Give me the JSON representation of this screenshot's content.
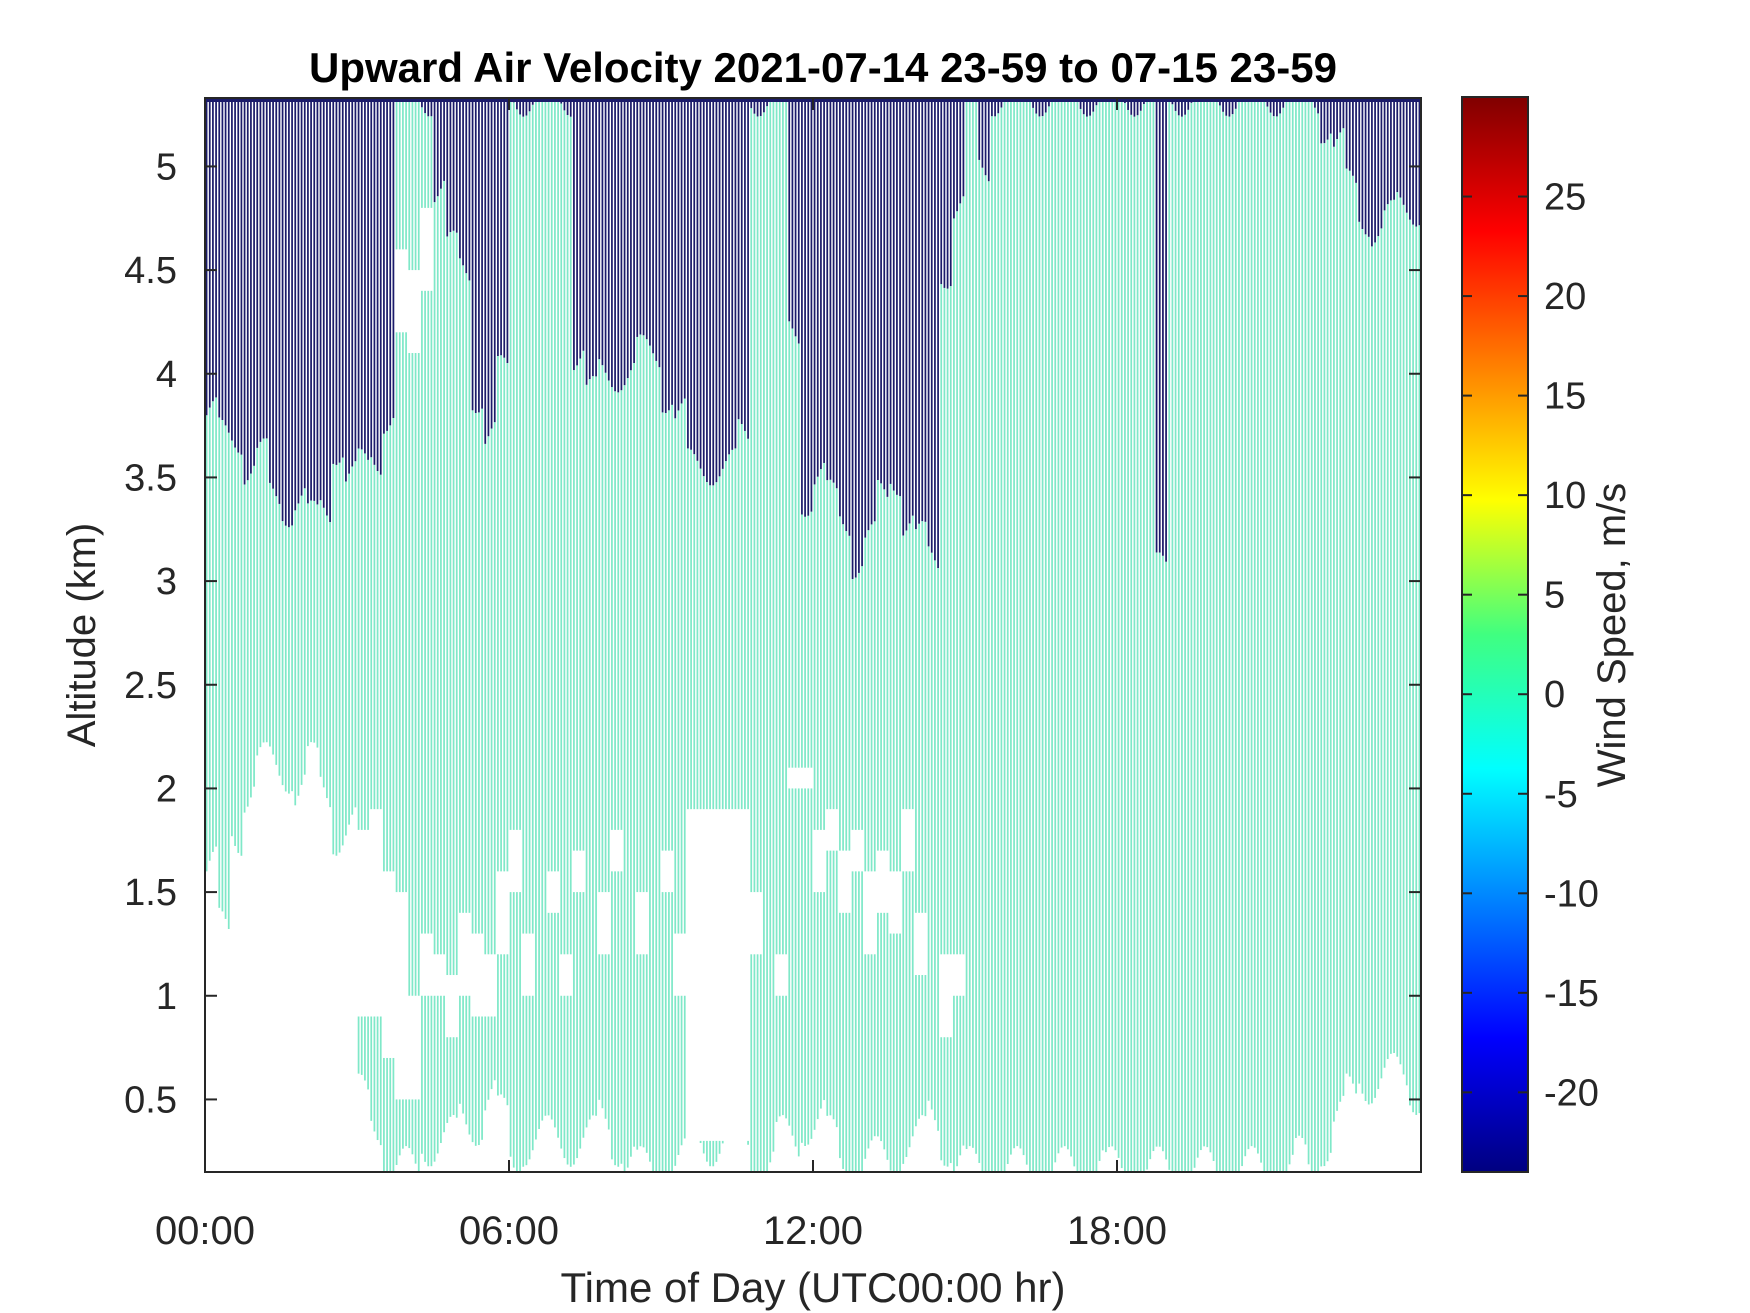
{
  "chart_data": {
    "type": "heatmap",
    "title": "Upward Air Velocity 2021-07-14 23-59 to 07-15 23-59",
    "xlabel": "Time of Day (UTC00:00 hr)",
    "ylabel": "Altitude (km)",
    "colorbar_label": "Wind Speed, m/s",
    "x_unit": "hours",
    "xlim": [
      0,
      24
    ],
    "ylim": [
      0.15,
      5.33
    ],
    "x_ticks": [
      0,
      6,
      12,
      18
    ],
    "x_tick_labels": [
      "00:00",
      "06:00",
      "12:00",
      "18:00"
    ],
    "y_ticks": [
      0.5,
      1,
      1.5,
      2,
      2.5,
      3,
      3.5,
      4,
      4.5,
      5
    ],
    "y_tick_labels": [
      "0.5",
      "1",
      "1.5",
      "2",
      "2.5",
      "3",
      "3.5",
      "4",
      "4.5",
      "5"
    ],
    "colorbar_range": [
      -24,
      30
    ],
    "colorbar_ticks": [
      25,
      20,
      15,
      10,
      5,
      0,
      -5,
      -10,
      -15,
      -20
    ],
    "colorbar_tick_labels": [
      "25",
      "20",
      "15",
      "10",
      "5",
      "0",
      "-5",
      "-10",
      "-15",
      "-20"
    ],
    "colormap": "jet",
    "grid": false,
    "colors": {
      "near_zero": "#7fe8c8",
      "strong_negative": "#1b1b6a"
    },
    "profile_interval_hours": 0.25,
    "profile_values_ms": {
      "below_threshold": -24,
      "above_threshold": 0
    },
    "profiles": [
      {
        "t": 0.0,
        "bottom": 1.6,
        "top": 3.8,
        "white": []
      },
      {
        "t": 0.25,
        "bottom": 1.3,
        "top": 3.7,
        "white": []
      },
      {
        "t": 0.5,
        "bottom": 1.8,
        "top": 3.7,
        "white": []
      },
      {
        "t": 0.75,
        "bottom": 2.0,
        "top": 3.55,
        "white": []
      },
      {
        "t": 1.0,
        "bottom": 2.1,
        "top": 3.6,
        "white": [
          [
            1.5,
            1.9
          ]
        ]
      },
      {
        "t": 1.25,
        "bottom": 2.1,
        "top": 3.4,
        "white": []
      },
      {
        "t": 1.5,
        "bottom": 2.1,
        "top": 3.35,
        "white": []
      },
      {
        "t": 1.75,
        "bottom": 2.0,
        "top": 3.4,
        "white": []
      },
      {
        "t": 2.0,
        "bottom": 2.1,
        "top": 3.3,
        "white": []
      },
      {
        "t": 2.25,
        "bottom": 2.0,
        "top": 3.35,
        "white": []
      },
      {
        "t": 2.5,
        "bottom": 1.8,
        "top": 3.65,
        "white": []
      },
      {
        "t": 2.75,
        "bottom": 1.8,
        "top": 3.5,
        "white": []
      },
      {
        "t": 3.0,
        "bottom": 0.5,
        "top": 3.55,
        "white": [
          [
            0.9,
            1.8
          ]
        ]
      },
      {
        "t": 3.25,
        "bottom": 0.4,
        "top": 3.6,
        "white": [
          [
            0.9,
            1.9
          ]
        ]
      },
      {
        "t": 3.5,
        "bottom": 0.15,
        "top": 3.8,
        "white": [
          [
            0.7,
            1.6
          ]
        ]
      },
      {
        "t": 3.75,
        "bottom": 0.15,
        "top": 5.33,
        "white": [
          [
            0.5,
            1.5
          ],
          [
            4.2,
            4.6
          ]
        ]
      },
      {
        "t": 4.0,
        "bottom": 0.15,
        "top": 5.33,
        "white": [
          [
            0.5,
            1.0
          ],
          [
            4.1,
            4.5
          ]
        ]
      },
      {
        "t": 4.25,
        "bottom": 0.3,
        "top": 5.33,
        "white": [
          [
            1.0,
            1.3
          ],
          [
            4.4,
            4.8
          ]
        ]
      },
      {
        "t": 4.5,
        "bottom": 0.3,
        "top": 4.9,
        "white": [
          [
            1.0,
            1.2
          ]
        ]
      },
      {
        "t": 4.75,
        "bottom": 0.3,
        "top": 4.6,
        "white": [
          [
            0.8,
            1.1
          ]
        ]
      },
      {
        "t": 5.0,
        "bottom": 0.4,
        "top": 4.5,
        "white": [
          [
            1.0,
            1.4
          ]
        ]
      },
      {
        "t": 5.25,
        "bottom": 0.4,
        "top": 3.9,
        "white": [
          [
            0.9,
            1.3
          ]
        ]
      },
      {
        "t": 5.5,
        "bottom": 0.5,
        "top": 3.7,
        "white": [
          [
            0.9,
            1.2
          ]
        ]
      },
      {
        "t": 5.75,
        "bottom": 0.4,
        "top": 4.0,
        "white": [
          [
            1.2,
            1.6
          ]
        ]
      },
      {
        "t": 6.0,
        "bottom": 0.2,
        "top": 5.33,
        "white": [
          [
            1.5,
            1.8
          ]
        ]
      },
      {
        "t": 6.25,
        "bottom": 0.3,
        "top": 5.33,
        "white": [
          [
            1.0,
            1.3
          ]
        ]
      },
      {
        "t": 6.5,
        "bottom": 0.3,
        "top": 5.33,
        "white": []
      },
      {
        "t": 6.75,
        "bottom": 0.3,
        "top": 5.33,
        "white": [
          [
            1.4,
            1.6
          ]
        ]
      },
      {
        "t": 7.0,
        "bottom": 0.3,
        "top": 5.33,
        "white": [
          [
            1.0,
            1.2
          ]
        ]
      },
      {
        "t": 7.25,
        "bottom": 0.3,
        "top": 4.1,
        "white": [
          [
            1.5,
            1.7
          ]
        ]
      },
      {
        "t": 7.5,
        "bottom": 0.3,
        "top": 3.9,
        "white": []
      },
      {
        "t": 7.75,
        "bottom": 0.4,
        "top": 4.0,
        "white": [
          [
            1.2,
            1.5
          ]
        ]
      },
      {
        "t": 8.0,
        "bottom": 0.3,
        "top": 4.0,
        "white": [
          [
            1.6,
            1.8
          ]
        ]
      },
      {
        "t": 8.25,
        "bottom": 0.2,
        "top": 4.0,
        "white": []
      },
      {
        "t": 8.5,
        "bottom": 0.15,
        "top": 4.1,
        "white": [
          [
            1.2,
            1.5
          ]
        ]
      },
      {
        "t": 8.75,
        "bottom": 0.15,
        "top": 4.1,
        "white": []
      },
      {
        "t": 9.0,
        "bottom": 0.15,
        "top": 3.9,
        "white": [
          [
            1.5,
            1.7
          ]
        ]
      },
      {
        "t": 9.25,
        "bottom": 0.2,
        "top": 3.8,
        "white": [
          [
            1.0,
            1.3
          ]
        ]
      },
      {
        "t": 9.5,
        "bottom": 0.3,
        "top": 3.55,
        "white": [
          [
            0.3,
            1.9
          ]
        ]
      },
      {
        "t": 9.75,
        "bottom": 0.3,
        "top": 3.55,
        "white": [
          [
            0.3,
            1.9
          ]
        ]
      },
      {
        "t": 10.0,
        "bottom": 0.3,
        "top": 3.55,
        "white": [
          [
            0.3,
            1.9
          ]
        ]
      },
      {
        "t": 10.25,
        "bottom": 0.3,
        "top": 3.55,
        "white": [
          [
            0.3,
            1.9
          ]
        ]
      },
      {
        "t": 10.5,
        "bottom": 0.3,
        "top": 3.7,
        "white": [
          [
            0.3,
            1.9
          ]
        ]
      },
      {
        "t": 10.75,
        "bottom": 0.2,
        "top": 5.33,
        "white": [
          [
            1.2,
            1.5
          ]
        ]
      },
      {
        "t": 11.0,
        "bottom": 0.2,
        "top": 5.33,
        "white": []
      },
      {
        "t": 11.25,
        "bottom": 0.3,
        "top": 5.33,
        "white": [
          [
            1.0,
            1.2
          ]
        ]
      },
      {
        "t": 11.5,
        "bottom": 0.3,
        "top": 4.2,
        "white": [
          [
            2.0,
            2.1
          ]
        ]
      },
      {
        "t": 11.75,
        "bottom": 0.4,
        "top": 3.4,
        "white": [
          [
            2.0,
            2.1
          ]
        ]
      },
      {
        "t": 12.0,
        "bottom": 0.4,
        "top": 3.5,
        "white": [
          [
            1.5,
            1.8
          ]
        ]
      },
      {
        "t": 12.25,
        "bottom": 0.3,
        "top": 3.4,
        "white": [
          [
            1.7,
            1.9
          ]
        ]
      },
      {
        "t": 12.5,
        "bottom": 0.2,
        "top": 3.3,
        "white": [
          [
            1.4,
            1.7
          ]
        ]
      },
      {
        "t": 12.75,
        "bottom": 0.15,
        "top": 3.1,
        "white": [
          [
            1.6,
            1.8
          ]
        ]
      },
      {
        "t": 13.0,
        "bottom": 0.2,
        "top": 3.2,
        "white": [
          [
            1.2,
            1.6
          ]
        ]
      },
      {
        "t": 13.25,
        "bottom": 0.2,
        "top": 3.4,
        "white": [
          [
            1.4,
            1.7
          ]
        ]
      },
      {
        "t": 13.5,
        "bottom": 0.2,
        "top": 3.5,
        "white": [
          [
            1.3,
            1.6
          ]
        ]
      },
      {
        "t": 13.75,
        "bottom": 0.3,
        "top": 3.3,
        "white": [
          [
            1.6,
            1.9
          ]
        ]
      },
      {
        "t": 14.0,
        "bottom": 0.3,
        "top": 3.2,
        "white": [
          [
            1.1,
            1.4
          ]
        ]
      },
      {
        "t": 14.25,
        "bottom": 0.4,
        "top": 3.1,
        "white": []
      },
      {
        "t": 14.5,
        "bottom": 0.3,
        "top": 4.5,
        "white": [
          [
            0.8,
            1.2
          ]
        ]
      },
      {
        "t": 14.75,
        "bottom": 0.2,
        "top": 4.8,
        "white": [
          [
            1.0,
            1.2
          ]
        ]
      },
      {
        "t": 15.0,
        "bottom": 0.15,
        "top": 5.33,
        "white": []
      },
      {
        "t": 15.25,
        "bottom": 0.15,
        "top": 5.0,
        "white": []
      },
      {
        "t": 15.5,
        "bottom": 0.15,
        "top": 5.33,
        "white": []
      },
      {
        "t": 15.75,
        "bottom": 0.15,
        "top": 5.33,
        "white": []
      },
      {
        "t": 16.0,
        "bottom": 0.15,
        "top": 5.33,
        "white": []
      },
      {
        "t": 16.25,
        "bottom": 0.15,
        "top": 5.33,
        "white": []
      },
      {
        "t": 16.5,
        "bottom": 0.15,
        "top": 5.33,
        "white": []
      },
      {
        "t": 16.75,
        "bottom": 0.15,
        "top": 5.33,
        "white": []
      },
      {
        "t": 17.0,
        "bottom": 0.15,
        "top": 5.33,
        "white": []
      },
      {
        "t": 17.25,
        "bottom": 0.2,
        "top": 5.33,
        "white": []
      },
      {
        "t": 17.5,
        "bottom": 0.2,
        "top": 5.33,
        "white": []
      },
      {
        "t": 17.75,
        "bottom": 0.15,
        "top": 5.33,
        "white": []
      },
      {
        "t": 18.0,
        "bottom": 0.15,
        "top": 5.33,
        "white": []
      },
      {
        "t": 18.25,
        "bottom": 0.15,
        "top": 5.33,
        "white": []
      },
      {
        "t": 18.5,
        "bottom": 0.15,
        "top": 5.33,
        "white": []
      },
      {
        "t": 18.75,
        "bottom": 0.15,
        "top": 3.05,
        "white": []
      },
      {
        "t": 19.0,
        "bottom": 0.15,
        "top": 5.33,
        "white": []
      },
      {
        "t": 19.25,
        "bottom": 0.15,
        "top": 5.33,
        "white": []
      },
      {
        "t": 19.5,
        "bottom": 0.15,
        "top": 5.33,
        "white": []
      },
      {
        "t": 19.75,
        "bottom": 0.15,
        "top": 5.33,
        "white": []
      },
      {
        "t": 20.0,
        "bottom": 0.15,
        "top": 5.33,
        "white": []
      },
      {
        "t": 20.25,
        "bottom": 0.15,
        "top": 5.33,
        "white": []
      },
      {
        "t": 20.5,
        "bottom": 0.15,
        "top": 5.33,
        "white": []
      },
      {
        "t": 20.75,
        "bottom": 0.15,
        "top": 5.33,
        "white": []
      },
      {
        "t": 21.0,
        "bottom": 0.15,
        "top": 5.33,
        "white": []
      },
      {
        "t": 21.25,
        "bottom": 0.15,
        "top": 5.33,
        "white": []
      },
      {
        "t": 21.5,
        "bottom": 0.2,
        "top": 5.33,
        "white": []
      },
      {
        "t": 21.75,
        "bottom": 0.15,
        "top": 5.33,
        "white": []
      },
      {
        "t": 22.0,
        "bottom": 0.3,
        "top": 5.2,
        "white": []
      },
      {
        "t": 22.25,
        "bottom": 0.4,
        "top": 5.1,
        "white": []
      },
      {
        "t": 22.5,
        "bottom": 0.5,
        "top": 4.9,
        "white": []
      },
      {
        "t": 22.75,
        "bottom": 0.6,
        "top": 4.75,
        "white": []
      },
      {
        "t": 23.0,
        "bottom": 0.6,
        "top": 4.7,
        "white": []
      },
      {
        "t": 23.25,
        "bottom": 0.6,
        "top": 4.75,
        "white": []
      },
      {
        "t": 23.5,
        "bottom": 0.6,
        "top": 4.8,
        "white": []
      },
      {
        "t": 23.75,
        "bottom": 0.55,
        "top": 4.8,
        "white": []
      }
    ]
  }
}
